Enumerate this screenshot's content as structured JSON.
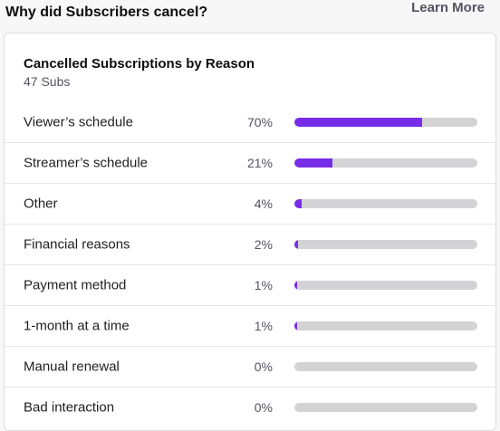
{
  "header": {
    "title": "Why did Subscribers cancel?",
    "learn_more": "Learn More"
  },
  "card": {
    "title": "Cancelled Subscriptions by Reason",
    "subtitle": "47 Subs",
    "accent_color": "#772ce8",
    "track_color": "#d3d3d6"
  },
  "reasons": [
    {
      "label": "Viewer’s schedule",
      "pct_text": "70%",
      "value": 70
    },
    {
      "label": "Streamer’s schedule",
      "pct_text": "21%",
      "value": 21
    },
    {
      "label": "Other",
      "pct_text": "4%",
      "value": 4
    },
    {
      "label": "Financial reasons",
      "pct_text": "2%",
      "value": 2
    },
    {
      "label": "Payment method",
      "pct_text": "1%",
      "value": 1
    },
    {
      "label": "1-month at a time",
      "pct_text": "1%",
      "value": 1
    },
    {
      "label": "Manual renewal",
      "pct_text": "0%",
      "value": 0
    },
    {
      "label": "Bad interaction",
      "pct_text": "0%",
      "value": 0
    }
  ]
}
